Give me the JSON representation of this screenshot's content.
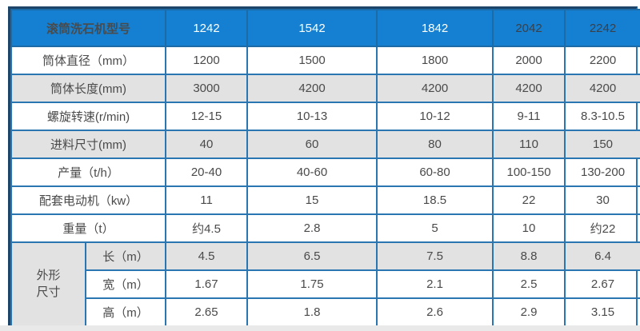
{
  "page": {
    "background": "#ffffff",
    "footer_strip_color": "#e9e9e9"
  },
  "table": {
    "colors": {
      "header_bg": "#1580d2",
      "header_text_light": "#ffffff",
      "header_text_dark": "#39404a",
      "border_inner": "#2a76b2",
      "border_outer_dark": "#1d4569",
      "row_shade_bg": "#e2e2e2",
      "row_plain_bg": "#ffffff",
      "cell_text": "#4a4a4a"
    },
    "header": {
      "label": "滚筒洗石机型号",
      "models": [
        {
          "label": "1242",
          "text_color": "#ffffff"
        },
        {
          "label": "1542",
          "text_color": "#ffffff"
        },
        {
          "label": "1842",
          "text_color": "#ffffff"
        },
        {
          "label": "2042",
          "text_color": "#39404a"
        },
        {
          "label": "2242",
          "text_color": "#39404a"
        }
      ]
    },
    "rows": [
      {
        "label": "筒体直径（mm）",
        "values": [
          "1200",
          "1500",
          "1800",
          "2000",
          "2200"
        ],
        "shaded": false
      },
      {
        "label": "筒体长度(mm)",
        "values": [
          "3000",
          "4200",
          "4200",
          "4200",
          "4200"
        ],
        "shaded": true
      },
      {
        "label": "螺旋转速(r/min)",
        "values": [
          "12-15",
          "10-13",
          "10-12",
          "9-11",
          "8.3-10.5"
        ],
        "shaded": false
      },
      {
        "label": "进料尺寸(mm)",
        "values": [
          "40",
          "60",
          "80",
          "110",
          "150"
        ],
        "shaded": true
      },
      {
        "label": "产量（t/h）",
        "values": [
          "20-40",
          "40-60",
          "60-80",
          "100-150",
          "130-200"
        ],
        "shaded": false
      },
      {
        "label": "配套电动机（kw）",
        "values": [
          "11",
          "15",
          "18.5",
          "22",
          "30"
        ],
        "shaded": false
      },
      {
        "label": "重量（t）",
        "values": [
          "约4.5",
          "2.8",
          "5",
          "10",
          "约22"
        ],
        "shaded": false
      }
    ],
    "dimension_group": {
      "label_lines": [
        "外形",
        "尺寸"
      ],
      "rows": [
        {
          "label": "长（m）",
          "values": [
            "4.5",
            "6.5",
            "7.5",
            "8.8",
            "6.4"
          ],
          "shaded": true
        },
        {
          "label": "宽（m）",
          "values": [
            "1.67",
            "1.75",
            "2.1",
            "2.5",
            "2.67"
          ],
          "shaded": false
        },
        {
          "label": "高（m）",
          "values": [
            "2.65",
            "1.8",
            "2.6",
            "2.9",
            "3.15"
          ],
          "shaded": false
        }
      ]
    }
  }
}
